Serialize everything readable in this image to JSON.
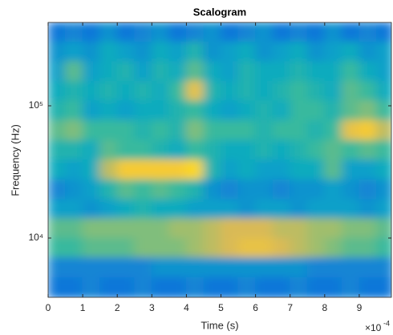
{
  "chart_data": {
    "type": "heatmap",
    "title": "Scalogram",
    "xlabel": "Time (s)",
    "ylabel": "Frequency (Hz)",
    "x_exponent": "×10",
    "x_exponent_power": "-4",
    "xlim": [
      0,
      9.93
    ],
    "xticks": [
      0,
      1,
      2,
      3,
      4,
      5,
      6,
      7,
      8,
      9
    ],
    "ylim": [
      3560,
      427000
    ],
    "ylog": true,
    "yticks": [
      {
        "value": 10000,
        "label": "10⁴"
      },
      {
        "value": 100000,
        "label": "10⁵"
      }
    ],
    "colormap": "parula",
    "clim": [
      0,
      1
    ],
    "x": [
      0.25,
      0.75,
      1.25,
      1.75,
      2.25,
      2.75,
      3.25,
      3.75,
      4.25,
      4.75,
      5.25,
      5.75,
      6.25,
      6.75,
      7.25,
      7.75,
      8.25,
      8.75,
      9.25,
      9.75
    ],
    "y": [
      360000,
      256000,
      182000,
      129000,
      92000,
      65000,
      46000,
      33000,
      23000,
      16600,
      11800,
      8400,
      6000,
      4200
    ],
    "z": [
      [
        0.2,
        0.25,
        0.2,
        0.3,
        0.2,
        0.25,
        0.3,
        0.2,
        0.25,
        0.3,
        0.2,
        0.25,
        0.3,
        0.2,
        0.25,
        0.2,
        0.3,
        0.2,
        0.25,
        0.2
      ],
      [
        0.3,
        0.35,
        0.3,
        0.4,
        0.35,
        0.3,
        0.4,
        0.35,
        0.45,
        0.3,
        0.35,
        0.4,
        0.3,
        0.35,
        0.4,
        0.3,
        0.35,
        0.4,
        0.3,
        0.35
      ],
      [
        0.35,
        0.55,
        0.35,
        0.4,
        0.45,
        0.35,
        0.45,
        0.4,
        0.55,
        0.4,
        0.35,
        0.45,
        0.4,
        0.4,
        0.45,
        0.4,
        0.4,
        0.5,
        0.4,
        0.35
      ],
      [
        0.4,
        0.45,
        0.4,
        0.45,
        0.4,
        0.45,
        0.4,
        0.5,
        0.8,
        0.45,
        0.4,
        0.45,
        0.4,
        0.45,
        0.5,
        0.45,
        0.4,
        0.55,
        0.5,
        0.4
      ],
      [
        0.45,
        0.5,
        0.35,
        0.4,
        0.35,
        0.4,
        0.4,
        0.45,
        0.5,
        0.4,
        0.35,
        0.4,
        0.45,
        0.4,
        0.5,
        0.5,
        0.45,
        0.55,
        0.6,
        0.5
      ],
      [
        0.55,
        0.6,
        0.5,
        0.5,
        0.5,
        0.45,
        0.5,
        0.45,
        0.6,
        0.5,
        0.5,
        0.5,
        0.45,
        0.5,
        0.5,
        0.45,
        0.5,
        0.8,
        0.85,
        0.7
      ],
      [
        0.45,
        0.45,
        0.4,
        0.55,
        0.5,
        0.5,
        0.45,
        0.4,
        0.5,
        0.45,
        0.4,
        0.4,
        0.45,
        0.4,
        0.45,
        0.5,
        0.55,
        0.5,
        0.55,
        0.5
      ],
      [
        0.4,
        0.35,
        0.4,
        0.7,
        0.85,
        0.85,
        0.85,
        0.85,
        0.9,
        0.45,
        0.35,
        0.4,
        0.35,
        0.35,
        0.4,
        0.4,
        0.55,
        0.35,
        0.35,
        0.4
      ],
      [
        0.25,
        0.3,
        0.35,
        0.45,
        0.55,
        0.5,
        0.55,
        0.5,
        0.45,
        0.3,
        0.25,
        0.3,
        0.3,
        0.25,
        0.3,
        0.3,
        0.35,
        0.3,
        0.25,
        0.3
      ],
      [
        0.35,
        0.35,
        0.3,
        0.35,
        0.4,
        0.45,
        0.4,
        0.4,
        0.35,
        0.35,
        0.35,
        0.3,
        0.35,
        0.35,
        0.3,
        0.35,
        0.35,
        0.35,
        0.3,
        0.35
      ],
      [
        0.55,
        0.55,
        0.6,
        0.6,
        0.6,
        0.6,
        0.6,
        0.65,
        0.65,
        0.7,
        0.75,
        0.75,
        0.75,
        0.7,
        0.7,
        0.65,
        0.65,
        0.6,
        0.6,
        0.55
      ],
      [
        0.5,
        0.5,
        0.55,
        0.55,
        0.55,
        0.6,
        0.6,
        0.6,
        0.65,
        0.7,
        0.75,
        0.8,
        0.8,
        0.75,
        0.7,
        0.65,
        0.6,
        0.55,
        0.55,
        0.5
      ],
      [
        0.25,
        0.25,
        0.25,
        0.25,
        0.25,
        0.25,
        0.3,
        0.3,
        0.3,
        0.3,
        0.3,
        0.3,
        0.3,
        0.3,
        0.3,
        0.25,
        0.25,
        0.25,
        0.25,
        0.25
      ],
      [
        0.2,
        0.2,
        0.25,
        0.2,
        0.2,
        0.25,
        0.2,
        0.2,
        0.25,
        0.2,
        0.2,
        0.25,
        0.2,
        0.2,
        0.25,
        0.2,
        0.2,
        0.25,
        0.2,
        0.2
      ]
    ]
  }
}
